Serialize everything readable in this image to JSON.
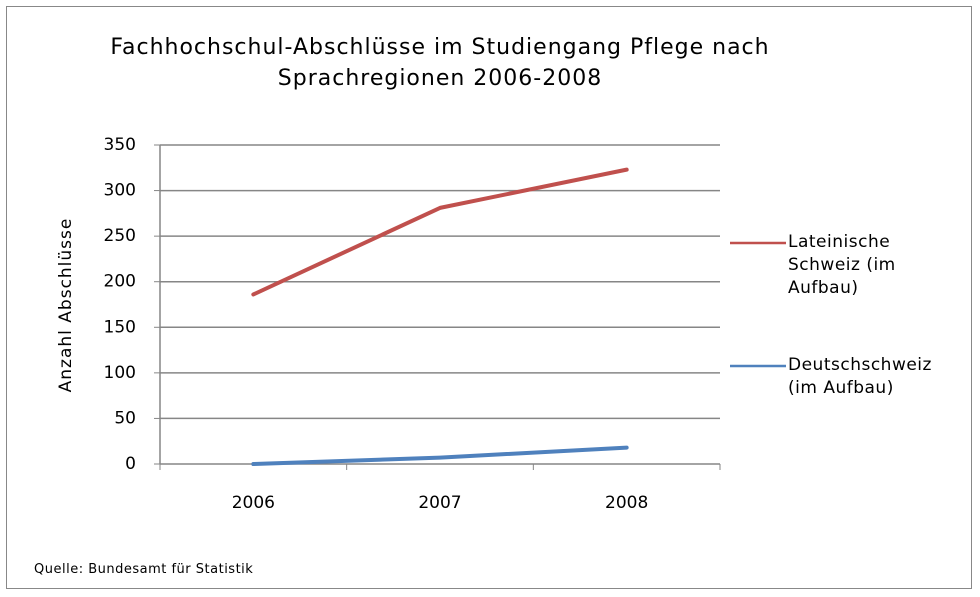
{
  "chart_data": {
    "type": "line",
    "title": "Fachhochschul-Abschlüsse im Studiengang Pflege nach Sprachregionen 2006-2008",
    "y_axis_label": "Anzahl Abschlüsse",
    "source": "Quelle: Bundesamt  für Statistik",
    "categories": [
      "2006",
      "2007",
      "2008"
    ],
    "series": [
      {
        "name": "Lateinische Schweiz (im Aufbau)",
        "color": "#c0504d",
        "values": [
          186,
          281,
          323
        ]
      },
      {
        "name": "Deutschschweiz (im Aufbau)",
        "color": "#4f81bd",
        "values": [
          0,
          7,
          18
        ]
      }
    ],
    "ylim": [
      0,
      350
    ],
    "yticks": [
      0,
      50,
      100,
      150,
      200,
      250,
      300,
      350
    ],
    "grid": true,
    "legend": "right"
  }
}
